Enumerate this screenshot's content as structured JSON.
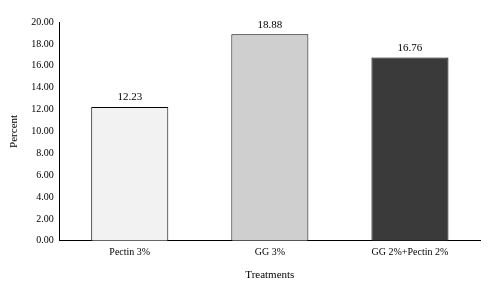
{
  "chart_data": {
    "type": "bar",
    "x_label": "Treatments",
    "y_label": "Percent",
    "categories": [
      "Pectin 3%",
      "GG 3%",
      "GG 2%+Pectin 2%"
    ],
    "values": [
      12.23,
      18.88,
      16.76
    ],
    "colors": [
      "#f2f2f2",
      "#cfcfcf",
      "#3a3a3a"
    ],
    "ylim": [
      0,
      20
    ],
    "yticks": [
      {
        "value": 0,
        "label": "0.00"
      },
      {
        "value": 2,
        "label": "2.00"
      },
      {
        "value": 4,
        "label": "4.00"
      },
      {
        "value": 6,
        "label": "6.00"
      },
      {
        "value": 8,
        "label": "8.00"
      },
      {
        "value": 10,
        "label": "10.00"
      },
      {
        "value": 12,
        "label": "12.00"
      },
      {
        "value": 14,
        "label": "14.00"
      },
      {
        "value": 16,
        "label": "16.00"
      },
      {
        "value": 18,
        "label": "18.00"
      },
      {
        "value": 20,
        "label": "20.00"
      }
    ],
    "grid": false,
    "data_labels": true
  }
}
